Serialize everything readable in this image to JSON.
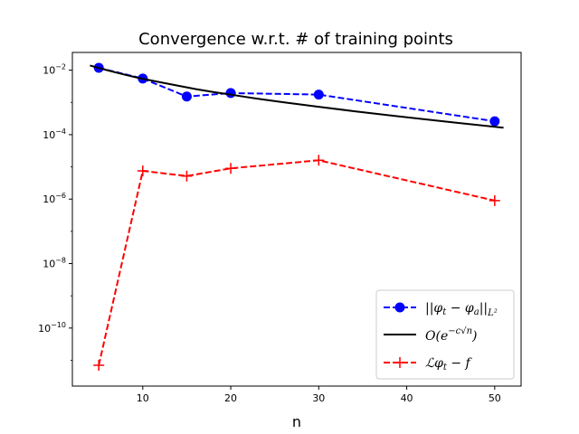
{
  "chart_data": {
    "type": "line",
    "title": "Convergence w.r.t. # of training points",
    "xlabel": "n",
    "ylabel": "",
    "xlim": [
      2,
      53
    ],
    "ylim_log10": [
      -11.8,
      -1.45
    ],
    "y_scale": "log",
    "x_ticks": [
      10,
      20,
      30,
      40,
      50
    ],
    "x_tick_labels": [
      "10",
      "20",
      "30",
      "40",
      "50"
    ],
    "y_ticks_log10": [
      -2,
      -4,
      -6,
      -8,
      -10
    ],
    "y_tick_labels": [
      {
        "base": "10",
        "exp": "−2"
      },
      {
        "base": "10",
        "exp": "−4"
      },
      {
        "base": "10",
        "exp": "−6"
      },
      {
        "base": "10",
        "exp": "−8"
      },
      {
        "base": "10",
        "exp": "−10"
      }
    ],
    "grid": false,
    "legend_position": "lower-right",
    "series": [
      {
        "name": "||φt − φa||L²",
        "color": "#0000ff",
        "line_style": "dashed",
        "marker": "circle",
        "x": [
          5,
          10,
          15,
          20,
          30,
          50
        ],
        "y": [
          0.0118,
          0.0055,
          0.00152,
          0.00195,
          0.00175,
          0.00026
        ]
      },
      {
        "name": "O(e^{−c√n})",
        "color": "#000000",
        "line_style": "solid",
        "marker": "none",
        "x": [
          4,
          5,
          6,
          7,
          8,
          9,
          10,
          12,
          14,
          16,
          18,
          20,
          23,
          26,
          30,
          34,
          38,
          42,
          46,
          51
        ],
        "y": [
          0.014,
          0.0117,
          0.0099,
          0.0084,
          0.0072,
          0.0062,
          0.0054,
          0.0042,
          0.0033,
          0.0026,
          0.0021,
          0.00174,
          0.00131,
          0.00101,
          0.00073,
          0.000535,
          0.000398,
          0.0003,
          0.000228,
          0.000164
        ]
      },
      {
        "name": "ℒφt − f",
        "color": "#ff0000",
        "line_style": "dashed",
        "marker": "plus",
        "x": [
          5,
          10,
          15,
          20,
          30,
          50
        ],
        "y": [
          7e-12,
          7.5e-06,
          5.2e-06,
          9e-06,
          1.6e-05,
          9e-07
        ]
      }
    ]
  }
}
